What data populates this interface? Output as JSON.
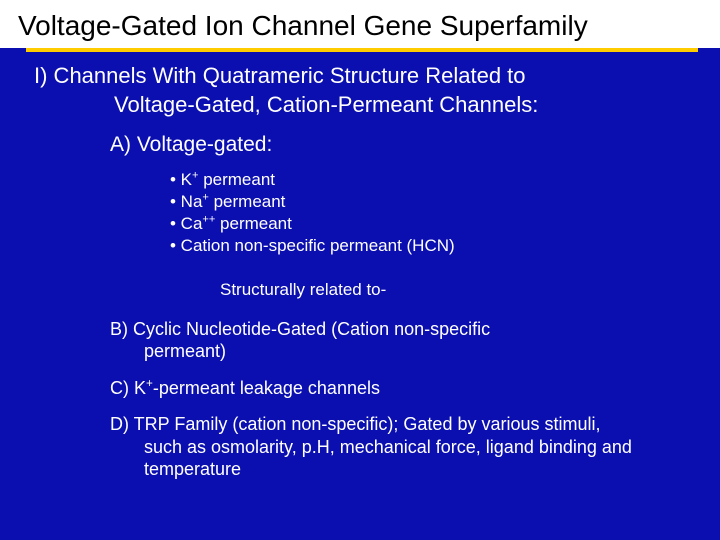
{
  "colors": {
    "background": "#0b0faf",
    "title_bg": "#ffffff",
    "title_text": "#000000",
    "divider": "#ffcc00",
    "body_text": "#ffffff"
  },
  "title": "Voltage-Gated Ion Channel Gene Superfamily",
  "section_i": {
    "line1": "I) Channels With Quatrameric Structure Related to",
    "line2": "Voltage-Gated, Cation-Permeant Channels:"
  },
  "sub_a": "A) Voltage-gated:",
  "bullets": {
    "b1_pre": "• K",
    "b1_sup": "+",
    "b1_post": " permeant",
    "b2_pre": "• Na",
    "b2_sup": "+",
    "b2_post": " permeant",
    "b3_pre": "• Ca",
    "b3_sup": "++",
    "b3_post": " permeant",
    "b4": "• Cation non-specific permeant (HCN)"
  },
  "note": "Structurally related to-",
  "item_b": {
    "l1": "B) Cyclic Nucleotide-Gated (Cation non-specific",
    "l2": "permeant)"
  },
  "item_c": {
    "pre": "C) K",
    "sup": "+",
    "post": "-permeant leakage channels"
  },
  "item_d": {
    "l1": "D) TRP Family (cation non-specific); Gated by various stimuli,",
    "l2": "such as osmolarity, p.H, mechanical force, ligand binding and",
    "l3": "temperature"
  }
}
